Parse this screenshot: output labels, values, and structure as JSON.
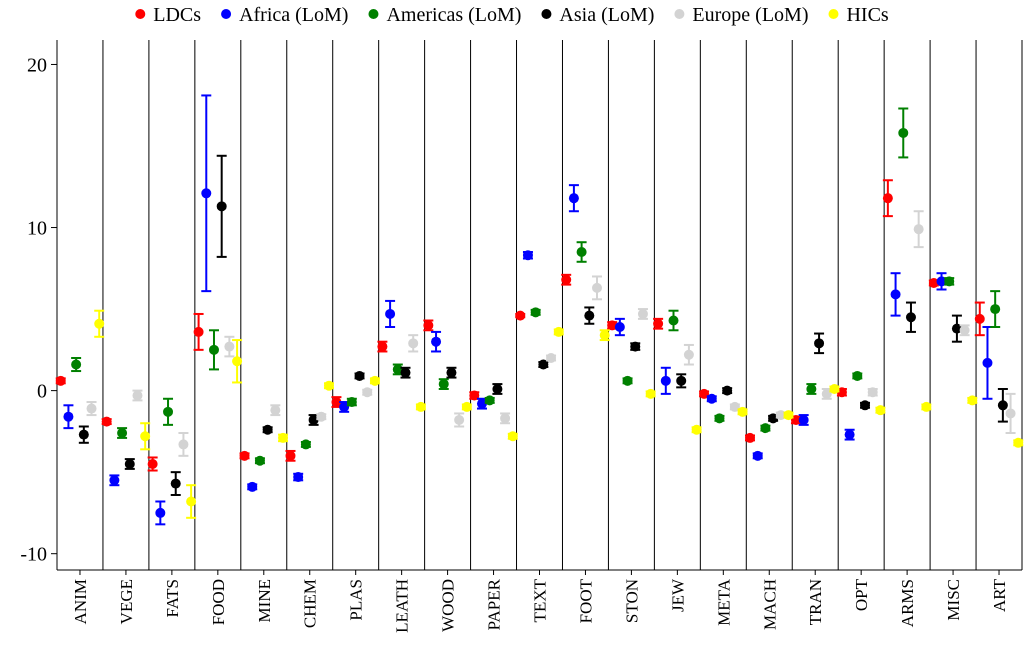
{
  "chart_data": {
    "type": "dot_errorbar",
    "categories": [
      "ANIM",
      "VEGE",
      "FATS",
      "FOOD",
      "MINE",
      "CHEM",
      "PLAS",
      "LEATH",
      "WOOD",
      "PAPER",
      "TEXT",
      "FOOT",
      "STON",
      "JEW",
      "META",
      "MACH",
      "TRAN",
      "OPT",
      "ARMS",
      "MISC",
      "ART"
    ],
    "series": [
      {
        "name": "LDCs",
        "color": "#ff0000",
        "values": [
          0.6,
          -1.9,
          -4.5,
          3.6,
          -4.0,
          -4.0,
          -0.7,
          2.7,
          4.0,
          -0.3,
          4.6,
          6.8,
          4.0,
          4.1,
          -0.2,
          -2.9,
          -1.8,
          -0.1,
          11.8,
          6.6,
          4.4
        ],
        "errors": [
          0.15,
          0.15,
          0.4,
          1.1,
          0.15,
          0.3,
          0.3,
          0.3,
          0.3,
          0.2,
          0.1,
          0.3,
          0.2,
          0.3,
          0.15,
          0.15,
          0.2,
          0.2,
          1.1,
          0.15,
          1.0
        ]
      },
      {
        "name": "Africa (LoM)",
        "color": "#0000ff",
        "values": [
          -1.6,
          -5.5,
          -7.5,
          12.1,
          -5.9,
          -5.3,
          -1.0,
          4.7,
          3.0,
          -0.8,
          8.3,
          11.8,
          3.9,
          0.6,
          -0.5,
          -4.0,
          -1.8,
          -2.7,
          5.9,
          6.7,
          1.7
        ],
        "errors": [
          0.7,
          0.3,
          0.7,
          6.0,
          0.15,
          0.2,
          0.3,
          0.8,
          0.6,
          0.3,
          0.2,
          0.8,
          0.5,
          0.8,
          0.15,
          0.15,
          0.3,
          0.3,
          1.3,
          0.5,
          2.2
        ]
      },
      {
        "name": "Americas (LoM)",
        "color": "#008000",
        "values": [
          1.6,
          -2.6,
          -1.3,
          2.5,
          -4.3,
          -3.3,
          -0.7,
          1.3,
          0.4,
          -0.6,
          4.8,
          8.5,
          0.6,
          4.3,
          -1.7,
          -2.3,
          0.1,
          0.9,
          15.8,
          6.7,
          5.0
        ],
        "errors": [
          0.4,
          0.3,
          0.8,
          1.2,
          0.15,
          0.15,
          0.2,
          0.3,
          0.3,
          0.15,
          0.15,
          0.6,
          0.15,
          0.6,
          0.15,
          0.15,
          0.3,
          0.15,
          1.5,
          0.2,
          1.1
        ]
      },
      {
        "name": "Asia (LoM)",
        "color": "#000000",
        "values": [
          -2.7,
          -4.5,
          -5.7,
          11.3,
          -2.4,
          -1.8,
          0.9,
          1.1,
          1.1,
          0.1,
          1.6,
          4.6,
          2.7,
          0.6,
          0.0,
          -1.7,
          2.9,
          -0.9,
          4.5,
          3.8,
          -0.9
        ],
        "errors": [
          0.5,
          0.3,
          0.7,
          3.1,
          0.15,
          0.3,
          0.15,
          0.3,
          0.3,
          0.3,
          0.15,
          0.5,
          0.2,
          0.4,
          0.15,
          0.15,
          0.6,
          0.15,
          0.9,
          0.8,
          1.0
        ]
      },
      {
        "name": "Europe (LoM)",
        "color": "#d3d3d3",
        "values": [
          -1.1,
          -0.3,
          -3.3,
          2.7,
          -1.2,
          -1.6,
          -0.1,
          2.9,
          -1.8,
          -1.7,
          2.0,
          6.3,
          4.7,
          2.2,
          -1.0,
          -1.5,
          -0.2,
          -0.1,
          9.9,
          3.7,
          -1.4
        ],
        "errors": [
          0.4,
          0.3,
          0.7,
          0.6,
          0.3,
          0.15,
          0.15,
          0.5,
          0.4,
          0.3,
          0.15,
          0.7,
          0.3,
          0.6,
          0.15,
          0.15,
          0.3,
          0.2,
          1.1,
          0.3,
          1.2
        ]
      },
      {
        "name": "HICs",
        "color": "#ffff00",
        "values": [
          4.1,
          -2.8,
          -6.8,
          1.8,
          -2.9,
          0.3,
          0.6,
          -1.0,
          -1.0,
          -2.8,
          3.6,
          3.4,
          -0.2,
          -2.4,
          -1.3,
          -1.5,
          0.1,
          -1.2,
          -1.0,
          -0.6,
          -3.2
        ],
        "errors": [
          0.8,
          0.8,
          1.0,
          1.3,
          0.2,
          0.15,
          0.15,
          0.15,
          0.15,
          0.15,
          0.15,
          0.3,
          0.15,
          0.15,
          0.15,
          0.15,
          0.15,
          0.15,
          0.15,
          0.15,
          0.15
        ]
      }
    ],
    "ylim": [
      -11,
      21.5
    ],
    "yticks": [
      -10,
      0,
      10,
      20
    ],
    "legend": "top"
  }
}
